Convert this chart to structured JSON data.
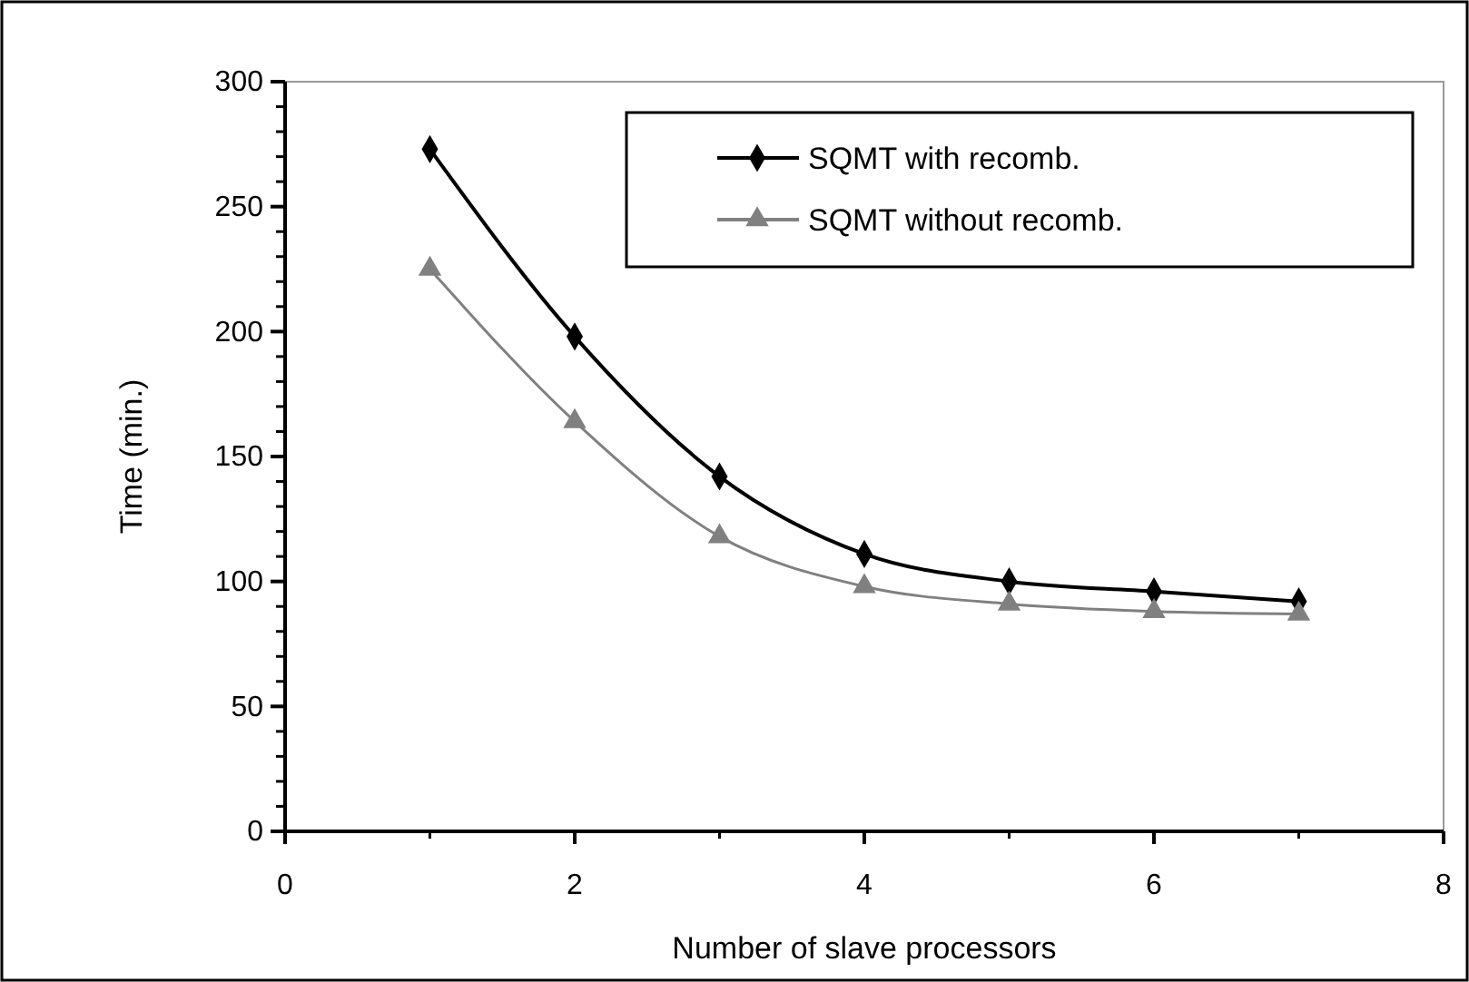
{
  "chart_data": {
    "type": "line",
    "xlabel": "Number of slave processors",
    "ylabel": "Time (min.)",
    "xlim": [
      0,
      8
    ],
    "xticks": [
      0,
      2,
      4,
      6,
      8
    ],
    "ylim": [
      0,
      300
    ],
    "yticks": [
      0,
      50,
      100,
      150,
      200,
      250,
      300
    ],
    "x": [
      1,
      2,
      3,
      4,
      5,
      6,
      7
    ],
    "series": [
      {
        "name": "SQMT with recomb.",
        "color": "#000000",
        "marker": "diamond",
        "values": [
          273,
          198,
          142,
          111,
          100,
          96,
          92
        ]
      },
      {
        "name": "SQMT without recomb.",
        "color": "#808080",
        "marker": "triangle",
        "values": [
          225,
          164,
          118,
          98,
          91,
          88,
          87
        ]
      }
    ],
    "legend": "top right",
    "grid": false,
    "line_style": "solid"
  }
}
